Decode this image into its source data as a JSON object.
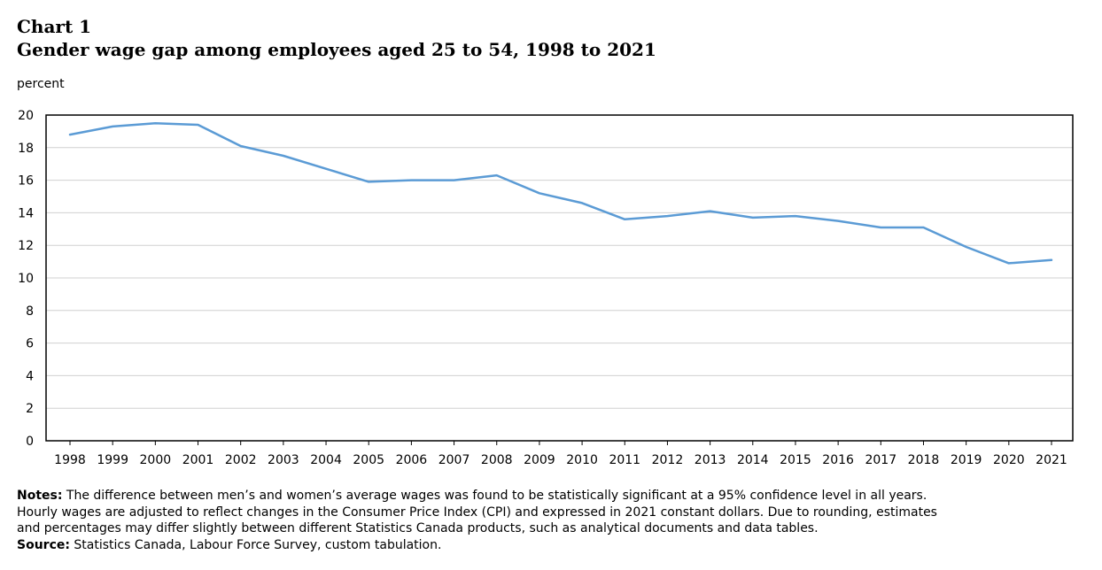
{
  "header": {
    "chart_number": "Chart 1",
    "title": "Gender wage gap among employees aged 25 to 54, 1998 to 2021"
  },
  "chart_data": {
    "type": "line",
    "title": "Gender wage gap among employees aged 25 to 54, 1998 to 2021",
    "ylabel": "percent",
    "xlabel": "",
    "ylim": [
      0,
      20
    ],
    "yticks": [
      0,
      2,
      4,
      6,
      8,
      10,
      12,
      14,
      16,
      18,
      20
    ],
    "grid": true,
    "legend": "none",
    "line_color": "#5b9bd5",
    "x": [
      "1998",
      "1999",
      "2000",
      "2001",
      "2002",
      "2003",
      "2004",
      "2005",
      "2006",
      "2007",
      "2008",
      "2009",
      "2010",
      "2011",
      "2012",
      "2013",
      "2014",
      "2015",
      "2016",
      "2017",
      "2018",
      "2019",
      "2020",
      "2021"
    ],
    "series": [
      {
        "values": [
          18.8,
          19.3,
          19.5,
          19.4,
          18.1,
          17.5,
          16.7,
          15.9,
          16.0,
          16.0,
          16.3,
          15.2,
          14.6,
          13.6,
          13.8,
          14.1,
          13.7,
          13.8,
          13.5,
          13.1,
          13.1,
          11.9,
          10.9,
          11.1
        ]
      }
    ]
  },
  "footnotes": {
    "notes_label": "Notes:",
    "notes_line1": " The difference between men’s and women’s average wages was found to be statistically significant at a 95% confidence level in all years.",
    "notes_line2": "Hourly wages are adjusted to reflect changes in the Consumer Price Index (CPI) and expressed in 2021 constant dollars. Due to rounding, estimates",
    "notes_line3": "and percentages may differ slightly between different Statistics Canada products, such as analytical documents and data tables.",
    "source_label": "Source:",
    "source_text": " Statistics Canada, Labour Force Survey, custom tabulation."
  }
}
